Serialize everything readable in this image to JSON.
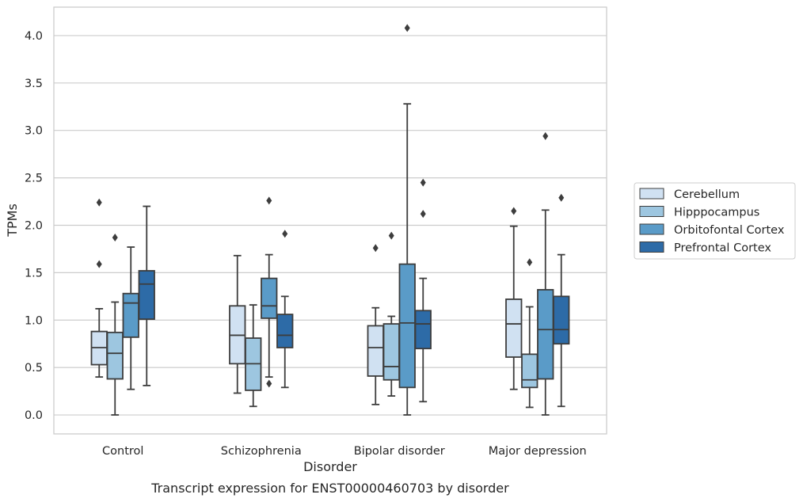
{
  "chart_data": {
    "type": "box",
    "title": "",
    "caption": "Transcript expression for ENST00000460703 by disorder",
    "xlabel": "Disorder",
    "ylabel": "TPMs",
    "ylim": [
      -0.2,
      4.3
    ],
    "yticks": [
      "0.0",
      "0.5",
      "1.0",
      "1.5",
      "2.0",
      "2.5",
      "3.0",
      "3.5",
      "4.0"
    ],
    "categories": [
      "Control",
      "Schizophrenia",
      "Bipolar disorder",
      "Major depression"
    ],
    "grid": "horizontal",
    "legend_position": "right",
    "series": [
      {
        "name": "Cerebellum",
        "color": "#d0e1f2",
        "boxes": [
          {
            "whislo": 0.4,
            "q1": 0.53,
            "med": 0.71,
            "q3": 0.88,
            "whishi": 1.12,
            "fliers": [
              1.59,
              2.24
            ]
          },
          {
            "whislo": 0.23,
            "q1": 0.54,
            "med": 0.84,
            "q3": 1.15,
            "whishi": 1.68,
            "fliers": []
          },
          {
            "whislo": 0.11,
            "q1": 0.41,
            "med": 0.71,
            "q3": 0.94,
            "whishi": 1.13,
            "fliers": [
              1.76
            ]
          },
          {
            "whislo": 0.27,
            "q1": 0.61,
            "med": 0.96,
            "q3": 1.22,
            "whishi": 1.99,
            "fliers": [
              2.15
            ]
          }
        ]
      },
      {
        "name": "Hipppocampus",
        "color": "#9dc6e0",
        "boxes": [
          {
            "whislo": 0.0,
            "q1": 0.38,
            "med": 0.65,
            "q3": 0.87,
            "whishi": 1.19,
            "fliers": [
              1.87
            ]
          },
          {
            "whislo": 0.09,
            "q1": 0.26,
            "med": 0.54,
            "q3": 0.81,
            "whishi": 1.16,
            "fliers": []
          },
          {
            "whislo": 0.2,
            "q1": 0.37,
            "med": 0.51,
            "q3": 0.96,
            "whishi": 1.04,
            "fliers": [
              1.89
            ]
          },
          {
            "whislo": 0.08,
            "q1": 0.29,
            "med": 0.37,
            "q3": 0.64,
            "whishi": 1.14,
            "fliers": [
              1.61
            ]
          }
        ]
      },
      {
        "name": "Orbitofontal Cortex",
        "color": "#5a9bc8",
        "boxes": [
          {
            "whislo": 0.27,
            "q1": 0.82,
            "med": 1.18,
            "q3": 1.28,
            "whishi": 1.77,
            "fliers": []
          },
          {
            "whislo": 0.4,
            "q1": 1.02,
            "med": 1.15,
            "q3": 1.44,
            "whishi": 1.69,
            "fliers": [
              0.33,
              2.26
            ]
          },
          {
            "whislo": 0.0,
            "q1": 0.29,
            "med": 0.97,
            "q3": 1.59,
            "whishi": 3.28,
            "fliers": [
              4.08
            ]
          },
          {
            "whislo": 0.0,
            "q1": 0.38,
            "med": 0.9,
            "q3": 1.32,
            "whishi": 2.16,
            "fliers": [
              2.94
            ]
          }
        ]
      },
      {
        "name": "Prefrontal Cortex",
        "color": "#2d6ba7",
        "boxes": [
          {
            "whislo": 0.31,
            "q1": 1.01,
            "med": 1.38,
            "q3": 1.52,
            "whishi": 2.2,
            "fliers": []
          },
          {
            "whislo": 0.29,
            "q1": 0.71,
            "med": 0.84,
            "q3": 1.06,
            "whishi": 1.25,
            "fliers": [
              1.91
            ]
          },
          {
            "whislo": 0.14,
            "q1": 0.7,
            "med": 0.96,
            "q3": 1.1,
            "whishi": 1.44,
            "fliers": [
              2.12,
              2.45
            ]
          },
          {
            "whislo": 0.09,
            "q1": 0.75,
            "med": 0.9,
            "q3": 1.25,
            "whishi": 1.69,
            "fliers": [
              2.29
            ]
          }
        ]
      }
    ]
  }
}
